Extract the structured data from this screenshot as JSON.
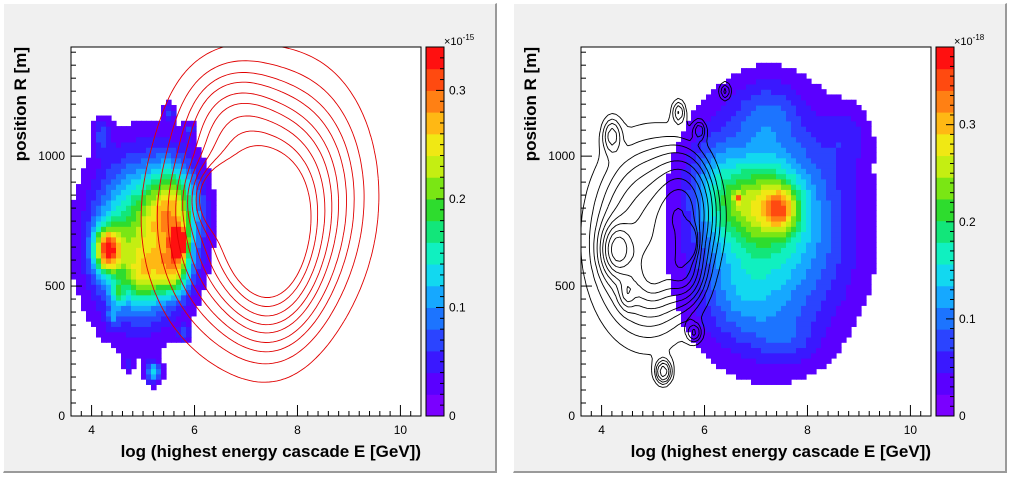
{
  "chart_data": [
    {
      "type": "heatmap",
      "subtype": "2D filled contour (COLZ) with overlaid line contours",
      "xlabel": "log (highest energy cascade E [GeV])",
      "ylabel": "position R [m]",
      "xlim": [
        3.6,
        10.4
      ],
      "ylim": [
        0,
        1420
      ],
      "xticks": [
        "4",
        "6",
        "8",
        "10"
      ],
      "yticks": [
        "0",
        "500",
        "1000"
      ],
      "colorbar": {
        "min": 0,
        "max": 0.34,
        "multiplier": "×10",
        "exponent": "-15",
        "ticks": [
          "0",
          "0.1",
          "0.2",
          "0.3"
        ]
      },
      "filled_component": {
        "description": "filled contour (colour scale)",
        "blobs": [
          {
            "cx": 4.9,
            "cy": 680,
            "sx": 0.62,
            "sy": 210,
            "v": 0.2
          },
          {
            "cx": 5.6,
            "cy": 790,
            "sx": 0.35,
            "sy": 130,
            "v": 0.18
          },
          {
            "cx": 5.7,
            "cy": 670,
            "sx": 0.09,
            "sy": 35,
            "v": 0.34
          },
          {
            "cx": 4.3,
            "cy": 640,
            "sx": 0.18,
            "sy": 60,
            "v": 0.22
          },
          {
            "cx": 5.6,
            "cy": 560,
            "sx": 0.22,
            "sy": 70,
            "v": 0.14
          },
          {
            "cx": 5.0,
            "cy": 540,
            "sx": 0.25,
            "sy": 70,
            "v": 0.09
          },
          {
            "cx": 4.2,
            "cy": 1080,
            "sx": 0.12,
            "sy": 45,
            "v": 0.06
          },
          {
            "cx": 5.2,
            "cy": 170,
            "sx": 0.1,
            "sy": 30,
            "v": 0.12
          },
          {
            "cx": 5.8,
            "cy": 320,
            "sx": 0.1,
            "sy": 25,
            "v": 0.05
          },
          {
            "cx": 4.5,
            "cy": 470,
            "sx": 0.1,
            "sy": 35,
            "v": 0.07
          },
          {
            "cx": 5.5,
            "cy": 1170,
            "sx": 0.08,
            "sy": 30,
            "v": 0.06
          },
          {
            "cx": 5.9,
            "cy": 1100,
            "sx": 0.08,
            "sy": 25,
            "v": 0.05
          },
          {
            "cx": 4.4,
            "cy": 380,
            "sx": 0.08,
            "sy": 25,
            "v": 0.05
          },
          {
            "cx": 4.7,
            "cy": 200,
            "sx": 0.07,
            "sy": 20,
            "v": 0.05
          }
        ]
      },
      "line_component": {
        "description": "line contour overlay",
        "color": "#e00000",
        "blobs": [
          {
            "cx": 7.1,
            "cy": 760,
            "sx": 0.95,
            "sy": 260,
            "v": 1.0
          },
          {
            "cx": 6.5,
            "cy": 840,
            "sx": 0.3,
            "sy": 70,
            "v": 0.8
          },
          {
            "cx": 7.5,
            "cy": 620,
            "sx": 0.55,
            "sy": 200,
            "v": 0.55
          },
          {
            "cx": 6.7,
            "cy": 1150,
            "sx": 0.6,
            "sy": 140,
            "v": 0.25
          },
          {
            "cx": 8.0,
            "cy": 900,
            "sx": 0.8,
            "sy": 250,
            "v": 0.35
          }
        ],
        "levels": [
          0.08,
          0.16,
          0.24,
          0.32,
          0.42,
          0.52,
          0.64,
          0.78,
          0.92
        ]
      }
    },
    {
      "type": "heatmap",
      "subtype": "2D filled contour (COLZ) with overlaid line contours",
      "xlabel": "log (highest energy cascade E [GeV])",
      "ylabel": "position R [m]",
      "xlim": [
        3.6,
        10.4
      ],
      "ylim": [
        0,
        1420
      ],
      "xticks": [
        "4",
        "6",
        "8",
        "10"
      ],
      "yticks": [
        "0",
        "500",
        "1000"
      ],
      "colorbar": {
        "min": 0,
        "max": 0.38,
        "multiplier": "×10",
        "exponent": "-18",
        "ticks": [
          "0",
          "0.1",
          "0.2",
          "0.3"
        ]
      },
      "filled_component": {
        "description": "filled contour (colour scale)",
        "blobs": [
          {
            "cx": 7.3,
            "cy": 720,
            "sx": 1.05,
            "sy": 300,
            "v": 0.16
          },
          {
            "cx": 7.0,
            "cy": 820,
            "sx": 0.55,
            "sy": 110,
            "v": 0.12
          },
          {
            "cx": 7.5,
            "cy": 800,
            "sx": 0.22,
            "sy": 60,
            "v": 0.12
          },
          {
            "cx": 6.65,
            "cy": 840,
            "sx": 0.05,
            "sy": 15,
            "v": 0.1
          },
          {
            "cx": 6.2,
            "cy": 900,
            "sx": 0.35,
            "sy": 140,
            "v": 0.05
          },
          {
            "cx": 7.2,
            "cy": 1170,
            "sx": 0.45,
            "sy": 90,
            "v": 0.05
          },
          {
            "cx": 6.7,
            "cy": 450,
            "sx": 0.5,
            "sy": 120,
            "v": 0.04
          },
          {
            "cx": 8.8,
            "cy": 1080,
            "sx": 0.3,
            "sy": 80,
            "v": 0.035
          },
          {
            "cx": 7.6,
            "cy": 300,
            "sx": 0.4,
            "sy": 60,
            "v": 0.035
          }
        ]
      },
      "line_component": {
        "description": "line contour overlay",
        "color": "#000000",
        "blobs": [
          {
            "cx": 4.9,
            "cy": 680,
            "sx": 0.62,
            "sy": 210,
            "v": 0.55
          },
          {
            "cx": 5.6,
            "cy": 790,
            "sx": 0.35,
            "sy": 130,
            "v": 0.55
          },
          {
            "cx": 5.7,
            "cy": 670,
            "sx": 0.09,
            "sy": 35,
            "v": 1.0
          },
          {
            "cx": 4.3,
            "cy": 640,
            "sx": 0.18,
            "sy": 60,
            "v": 0.65
          },
          {
            "cx": 5.6,
            "cy": 560,
            "sx": 0.22,
            "sy": 70,
            "v": 0.4
          },
          {
            "cx": 5.0,
            "cy": 540,
            "sx": 0.25,
            "sy": 70,
            "v": 0.28
          },
          {
            "cx": 4.2,
            "cy": 1080,
            "sx": 0.12,
            "sy": 45,
            "v": 0.22
          },
          {
            "cx": 5.2,
            "cy": 170,
            "sx": 0.1,
            "sy": 30,
            "v": 0.35
          },
          {
            "cx": 5.8,
            "cy": 320,
            "sx": 0.1,
            "sy": 25,
            "v": 0.2
          },
          {
            "cx": 4.5,
            "cy": 470,
            "sx": 0.1,
            "sy": 35,
            "v": 0.22
          },
          {
            "cx": 5.5,
            "cy": 1170,
            "sx": 0.08,
            "sy": 30,
            "v": 0.2
          },
          {
            "cx": 5.9,
            "cy": 1100,
            "sx": 0.08,
            "sy": 25,
            "v": 0.18
          },
          {
            "cx": 6.4,
            "cy": 1250,
            "sx": 0.08,
            "sy": 25,
            "v": 0.18
          }
        ],
        "levels": [
          0.06,
          0.11,
          0.16,
          0.22,
          0.3,
          0.4,
          0.52,
          0.66,
          0.82
        ]
      }
    }
  ]
}
